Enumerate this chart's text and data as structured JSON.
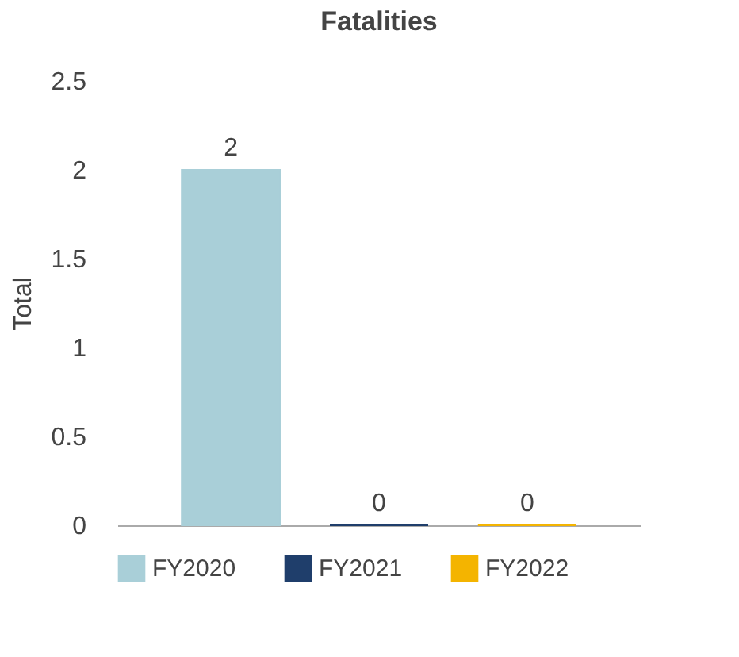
{
  "chart_data": {
    "type": "bar",
    "title": "Fatalities",
    "ylabel": "Total",
    "categories": [
      null
    ],
    "series": [
      {
        "name": "FY2020",
        "color": "#a9cfd8",
        "values": [
          2
        ]
      },
      {
        "name": "FY2021",
        "color": "#1f3e6b",
        "values": [
          0
        ]
      },
      {
        "name": "FY2022",
        "color": "#f4b400",
        "values": [
          0
        ]
      }
    ],
    "ylim": [
      0,
      2.5
    ],
    "yticks": [
      0,
      0.5,
      1,
      1.5,
      2,
      2.5
    ],
    "grid": false,
    "legend": "bottom",
    "data_labels": true,
    "tick_labels": "y"
  }
}
